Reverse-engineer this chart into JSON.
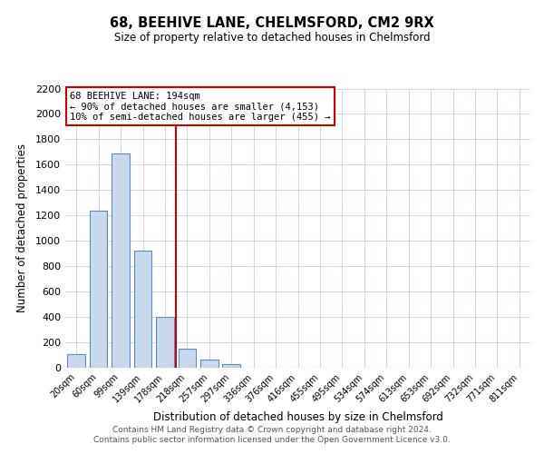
{
  "title": "68, BEEHIVE LANE, CHELMSFORD, CM2 9RX",
  "subtitle": "Size of property relative to detached houses in Chelmsford",
  "xlabel": "Distribution of detached houses by size in Chelmsford",
  "ylabel": "Number of detached properties",
  "bar_labels": [
    "20sqm",
    "60sqm",
    "99sqm",
    "139sqm",
    "178sqm",
    "218sqm",
    "257sqm",
    "297sqm",
    "336sqm",
    "376sqm",
    "416sqm",
    "455sqm",
    "495sqm",
    "534sqm",
    "574sqm",
    "613sqm",
    "653sqm",
    "692sqm",
    "732sqm",
    "771sqm",
    "811sqm"
  ],
  "bar_values": [
    110,
    1240,
    1690,
    920,
    400,
    150,
    65,
    30,
    0,
    0,
    0,
    0,
    0,
    0,
    0,
    0,
    0,
    0,
    0,
    0,
    0
  ],
  "bar_color": "#c8d9ee",
  "bar_edgecolor": "#5b8dc8",
  "vline_color": "#cc0000",
  "vline_index": 4.5,
  "ylim": [
    0,
    2200
  ],
  "yticks": [
    0,
    200,
    400,
    600,
    800,
    1000,
    1200,
    1400,
    1600,
    1800,
    2000,
    2200
  ],
  "annotation_line1": "68 BEEHIVE LANE: 194sqm",
  "annotation_line2": "← 90% of detached houses are smaller (4,153)",
  "annotation_line3": "10% of semi-detached houses are larger (455) →",
  "annotation_box_color": "#ffffff",
  "annotation_box_edgecolor": "#cc0000",
  "footer_line1": "Contains HM Land Registry data © Crown copyright and database right 2024.",
  "footer_line2": "Contains public sector information licensed under the Open Government Licence v3.0.",
  "background_color": "#ffffff",
  "grid_color": "#c8d4e8",
  "figsize": [
    6.0,
    5.0
  ],
  "dpi": 100
}
